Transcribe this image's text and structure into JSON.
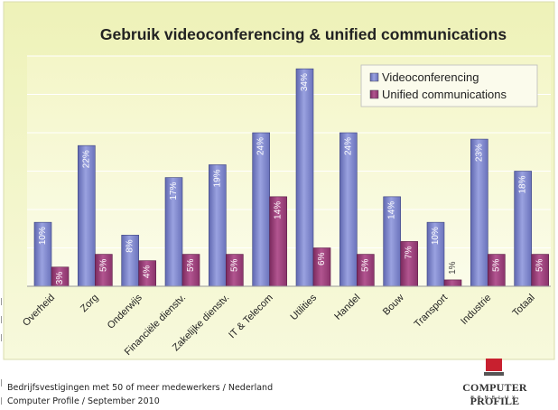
{
  "chart_data": {
    "type": "bar",
    "title": "Gebruik videoconferencing & unified communications",
    "categories": [
      "Overheid",
      "Zorg",
      "Onderwijs",
      "Financiële dienstv.",
      "Zakelijke dienstv.",
      "IT & Telecom",
      "Utilities",
      "Handel",
      "Bouw",
      "Transport",
      "Industrie",
      "Totaal"
    ],
    "series": [
      {
        "name": "Videoconferencing",
        "color": "#7b84c9",
        "values": [
          10,
          22,
          8,
          17,
          19,
          24,
          34,
          24,
          14,
          10,
          23,
          18
        ],
        "labels": [
          "10%",
          "22%",
          "8%",
          "17%",
          "19%",
          "24%",
          "34%",
          "24%",
          "14%",
          "10%",
          "23%",
          "18%"
        ]
      },
      {
        "name": "Unified communications",
        "color": "#9b3f7a",
        "values": [
          3,
          5,
          4,
          5,
          5,
          14,
          6,
          5,
          7,
          1,
          5,
          5
        ],
        "labels": [
          "3%",
          "5%",
          "4%",
          "5%",
          "5%",
          "14%",
          "6%",
          "5%",
          "7%",
          "1%",
          "5%",
          "5%"
        ]
      }
    ],
    "ylim": [
      0,
      36
    ],
    "grid": true,
    "legend_position": "top-right"
  },
  "footer": {
    "line1": "Bedrijfsvestigingen met 50 of meer medewerkers / Nederland",
    "line2": "Computer Profile / September 2010"
  },
  "logo": {
    "name": "COMPUTER PROFILE",
    "sub": "BENELUX"
  }
}
